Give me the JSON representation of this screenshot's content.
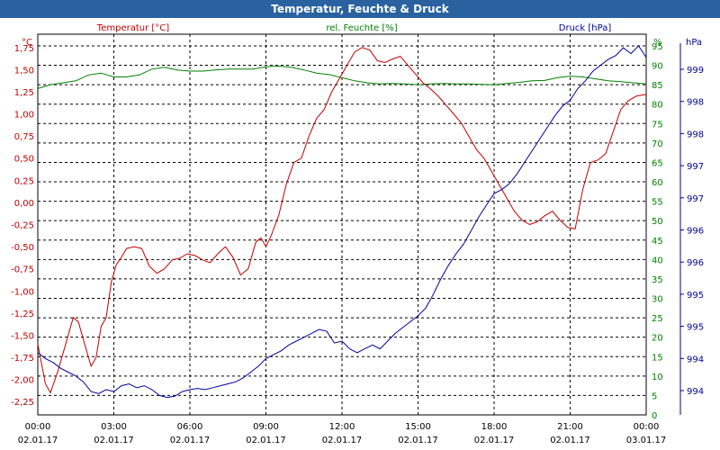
{
  "window": {
    "title": "Temperatur, Feuchte & Druck"
  },
  "chart_data": {
    "type": "line",
    "title": "Temperatur, Feuchte & Druck",
    "grid": true,
    "colors": {
      "temperature": "#c00000",
      "humidity": "#008000",
      "pressure": "#000099",
      "grid": "#000000",
      "title_bg": "#2a62a0"
    },
    "axes": {
      "left": {
        "label": "Temperatur [°C]",
        "unit": "°C",
        "min": -2.4,
        "max": 1.9,
        "ticks": [
          "1,75",
          "1,50",
          "1,25",
          "1,00",
          "0,75",
          "0,50",
          "0,25",
          "0,00",
          "-0,25",
          "-0,50",
          "-0,75",
          "-1,00",
          "-1,25",
          "-1,50",
          "-1,75",
          "-2,00",
          "-2,25"
        ],
        "tick_values": [
          1.75,
          1.5,
          1.25,
          1.0,
          0.75,
          0.5,
          0.25,
          0.0,
          -0.25,
          -0.5,
          -0.75,
          -1.0,
          -1.25,
          -1.5,
          -1.75,
          -2.0,
          -2.25
        ]
      },
      "middle": {
        "label": "rel. Feuchte [%]",
        "unit": "%",
        "min": 0,
        "max": 98,
        "ticks": [
          "95",
          "90",
          "85",
          "80",
          "75",
          "70",
          "65",
          "60",
          "55",
          "50",
          "45",
          "40",
          "35",
          "30",
          "25",
          "20",
          "15",
          "10",
          "5",
          "0"
        ],
        "tick_values": [
          95,
          90,
          85,
          80,
          75,
          70,
          65,
          60,
          55,
          50,
          45,
          40,
          35,
          30,
          25,
          20,
          15,
          10,
          5,
          0
        ]
      },
      "right": {
        "label": "Druck [hPa]",
        "unit": "hPa",
        "ticks": [
          "999",
          "998",
          "998",
          "997",
          "997",
          "996",
          "996",
          "995",
          "995",
          "994",
          "994"
        ]
      },
      "x": {
        "min": 0,
        "max": 24,
        "ticks": [
          {
            "time": "00:00",
            "date": "02.01.17",
            "h": 0
          },
          {
            "time": "03:00",
            "date": "02.01.17",
            "h": 3
          },
          {
            "time": "06:00",
            "date": "02.01.17",
            "h": 6
          },
          {
            "time": "09:00",
            "date": "02.01.17",
            "h": 9
          },
          {
            "time": "12:00",
            "date": "02.01.17",
            "h": 12
          },
          {
            "time": "15:00",
            "date": "02.01.17",
            "h": 15
          },
          {
            "time": "18:00",
            "date": "02.01.17",
            "h": 18
          },
          {
            "time": "21:00",
            "date": "02.01.17",
            "h": 21
          },
          {
            "time": "00:00",
            "date": "03.01.17",
            "h": 24
          }
        ]
      }
    },
    "series": [
      {
        "name": "Temperatur [°C]",
        "axis": "left",
        "color": "#c00000",
        "x": [
          0,
          0.3,
          0.5,
          0.8,
          1.1,
          1.4,
          1.6,
          1.9,
          2.1,
          2.3,
          2.5,
          2.7,
          2.9,
          3.1,
          3.3,
          3.5,
          3.8,
          4.1,
          4.4,
          4.7,
          5.0,
          5.3,
          5.6,
          5.9,
          6.2,
          6.5,
          6.8,
          7.1,
          7.4,
          7.7,
          8.0,
          8.3,
          8.6,
          8.8,
          9.0,
          9.2,
          9.5,
          9.8,
          10.1,
          10.4,
          10.7,
          11.0,
          11.3,
          11.6,
          11.9,
          12.2,
          12.5,
          12.8,
          13.1,
          13.4,
          13.7,
          14.0,
          14.3,
          14.6,
          14.9,
          15.2,
          15.5,
          15.8,
          16.1,
          16.4,
          16.7,
          17.0,
          17.3,
          17.6,
          17.9,
          18.2,
          18.5,
          18.8,
          19.1,
          19.4,
          19.7,
          20.0,
          20.3,
          20.6,
          20.9,
          21.2,
          21.5,
          21.8,
          22.1,
          22.4,
          22.7,
          23.0,
          23.3,
          23.6,
          24.0
        ],
        "values": [
          -1.6,
          -2.05,
          -2.15,
          -1.9,
          -1.6,
          -1.3,
          -1.35,
          -1.65,
          -1.85,
          -1.75,
          -1.4,
          -1.3,
          -0.9,
          -0.7,
          -0.62,
          -0.52,
          -0.5,
          -0.52,
          -0.72,
          -0.8,
          -0.75,
          -0.65,
          -0.63,
          -0.58,
          -0.6,
          -0.65,
          -0.68,
          -0.58,
          -0.5,
          -0.62,
          -0.82,
          -0.75,
          -0.45,
          -0.4,
          -0.5,
          -0.38,
          -0.15,
          0.2,
          0.45,
          0.5,
          0.75,
          0.95,
          1.05,
          1.25,
          1.4,
          1.55,
          1.7,
          1.75,
          1.72,
          1.6,
          1.58,
          1.62,
          1.65,
          1.55,
          1.45,
          1.35,
          1.28,
          1.2,
          1.1,
          1.0,
          0.9,
          0.75,
          0.6,
          0.5,
          0.35,
          0.2,
          0.05,
          -0.1,
          -0.2,
          -0.25,
          -0.22,
          -0.15,
          -0.1,
          -0.2,
          -0.28,
          -0.3,
          0.15,
          0.45,
          0.48,
          0.55,
          0.8,
          1.05,
          1.15,
          1.2,
          1.22
        ]
      },
      {
        "name": "rel. Feuchte [%]",
        "axis": "middle",
        "color": "#008000",
        "x": [
          0,
          0.5,
          1.0,
          1.5,
          2.0,
          2.5,
          3.0,
          3.5,
          4.0,
          4.5,
          5.0,
          5.5,
          6.0,
          6.5,
          7.0,
          7.5,
          8.0,
          8.5,
          9.0,
          9.5,
          10.0,
          10.5,
          11.0,
          11.5,
          12.0,
          12.5,
          13.0,
          13.5,
          14.0,
          14.5,
          15.0,
          15.5,
          16.0,
          16.5,
          17.0,
          17.5,
          18.0,
          18.5,
          19.0,
          19.5,
          20.0,
          20.5,
          21.0,
          21.5,
          22.0,
          22.5,
          23.0,
          23.5,
          24.0
        ],
        "values": [
          84,
          85,
          85.5,
          86,
          87.5,
          88,
          87,
          87,
          87.5,
          89,
          89.5,
          88.8,
          88.5,
          88.5,
          88.8,
          89,
          89,
          89,
          89.6,
          89.8,
          89.5,
          88.8,
          88,
          87.6,
          86.8,
          86,
          85.5,
          85.2,
          85.3,
          85.2,
          85,
          85.2,
          85.3,
          85.2,
          85.2,
          85.1,
          85,
          85.3,
          85.6,
          86,
          86.1,
          86.8,
          87.2,
          87,
          86.5,
          86,
          85.8,
          85.5,
          85.2
        ]
      },
      {
        "name": "Druck [hPa]",
        "axis": "right",
        "color": "#000099",
        "x": [
          0,
          0.3,
          0.6,
          0.9,
          1.2,
          1.5,
          1.8,
          2.1,
          2.4,
          2.7,
          3.0,
          3.3,
          3.6,
          3.9,
          4.2,
          4.5,
          4.8,
          5.1,
          5.4,
          5.7,
          6.0,
          6.3,
          6.6,
          6.9,
          7.2,
          7.5,
          7.8,
          8.1,
          8.4,
          8.7,
          9.0,
          9.3,
          9.6,
          9.9,
          10.2,
          10.5,
          10.8,
          11.1,
          11.4,
          11.7,
          12.0,
          12.3,
          12.6,
          12.9,
          13.2,
          13.5,
          13.8,
          14.1,
          14.4,
          14.7,
          15.0,
          15.3,
          15.6,
          15.9,
          16.2,
          16.5,
          16.8,
          17.1,
          17.4,
          17.7,
          18.0,
          18.3,
          18.6,
          18.9,
          19.2,
          19.5,
          19.8,
          20.1,
          20.4,
          20.7,
          21.0,
          21.3,
          21.6,
          21.9,
          22.2,
          22.5,
          22.8,
          23.1,
          23.4,
          23.7,
          24.0
        ],
        "values": [
          16,
          14.5,
          13.5,
          12,
          11,
          10,
          8.5,
          6,
          5.5,
          6.5,
          6,
          7.5,
          8,
          7,
          7.5,
          6.5,
          5,
          4.5,
          4.8,
          6,
          6.5,
          6.8,
          6.5,
          7,
          7.5,
          8,
          8.5,
          9.5,
          11,
          12.5,
          14.5,
          15.5,
          16.5,
          18,
          19,
          20,
          21,
          22,
          21.5,
          18.5,
          19,
          17,
          16,
          17,
          18,
          17,
          19,
          21,
          22.5,
          24,
          25.5,
          27.5,
          31,
          35,
          38.5,
          41.5,
          44,
          47.5,
          51,
          54,
          57,
          58,
          59.5,
          62,
          65,
          68,
          71,
          74,
          77,
          79.5,
          81,
          84,
          86,
          88.5,
          90,
          91.5,
          92.5,
          94.5,
          93,
          95,
          92
        ]
      }
    ]
  }
}
